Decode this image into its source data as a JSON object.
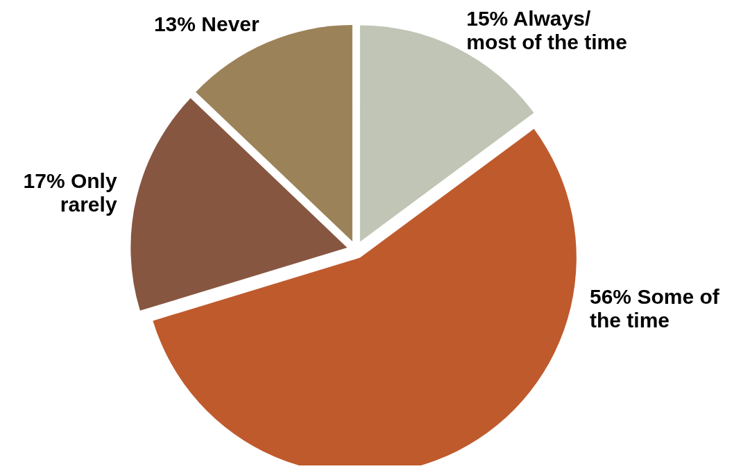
{
  "chart_data": {
    "type": "pie",
    "categories": [
      "Always/ most of the time",
      "Some of the time",
      "Only rarely",
      "Never"
    ],
    "values": [
      15,
      56,
      17,
      13
    ],
    "value_labels": [
      "15%",
      "56%",
      "17%",
      "13%"
    ],
    "colors": [
      "#c0c5b5",
      "#bf5a2d",
      "#875641",
      "#9c8259"
    ],
    "legend": false
  }
}
